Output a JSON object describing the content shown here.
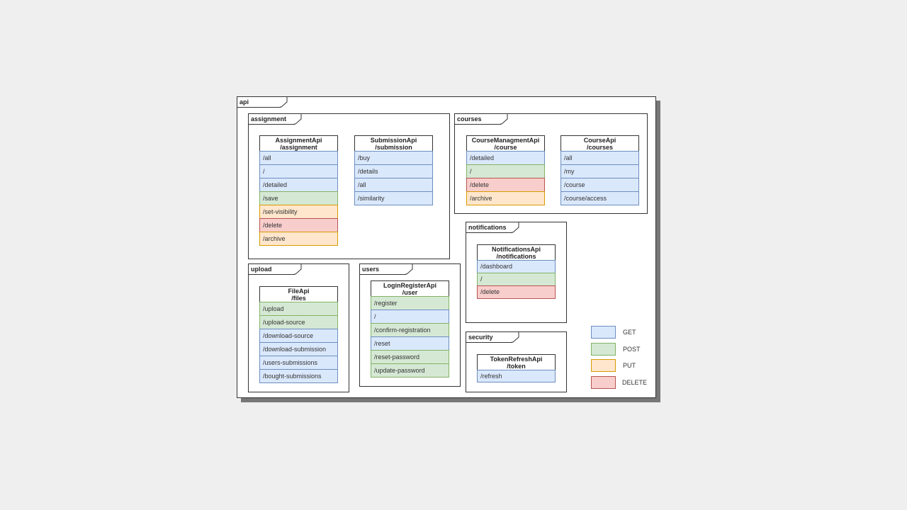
{
  "colors": {
    "GET": {
      "fill": "#dae8fc",
      "stroke": "#6c8ebf"
    },
    "POST": {
      "fill": "#d5e8d4",
      "stroke": "#82b366"
    },
    "PUT": {
      "fill": "#ffe6cc",
      "stroke": "#d79b00"
    },
    "DELETE": {
      "fill": "#f8cecc",
      "stroke": "#b85450"
    }
  },
  "root": {
    "label": "api"
  },
  "packages": {
    "assignment": {
      "label": "assignment",
      "classes": [
        {
          "name": "AssignmentApi",
          "path": "/assignment",
          "endpoints": [
            {
              "path": "/all",
              "method": "GET"
            },
            {
              "path": "/",
              "method": "GET"
            },
            {
              "path": "/detailed",
              "method": "GET"
            },
            {
              "path": "/save",
              "method": "POST"
            },
            {
              "path": "/set-visibility",
              "method": "PUT"
            },
            {
              "path": "/delete",
              "method": "DELETE"
            },
            {
              "path": "/archive",
              "method": "PUT"
            }
          ]
        },
        {
          "name": "SubmissionApi",
          "path": "/submission",
          "endpoints": [
            {
              "path": "/buy",
              "method": "GET"
            },
            {
              "path": "/details",
              "method": "GET"
            },
            {
              "path": "/all",
              "method": "GET"
            },
            {
              "path": "/similarity",
              "method": "GET"
            }
          ]
        }
      ]
    },
    "courses": {
      "label": "courses",
      "classes": [
        {
          "name": "CourseManagmentApi",
          "path": "/course",
          "endpoints": [
            {
              "path": "/detailed",
              "method": "GET"
            },
            {
              "path": "/",
              "method": "POST"
            },
            {
              "path": "/delete",
              "method": "DELETE"
            },
            {
              "path": "/archive",
              "method": "PUT"
            }
          ]
        },
        {
          "name": "CourseApi",
          "path": "/courses",
          "endpoints": [
            {
              "path": "/all",
              "method": "GET"
            },
            {
              "path": "/my",
              "method": "GET"
            },
            {
              "path": "/course",
              "method": "GET"
            },
            {
              "path": "/course/access",
              "method": "GET"
            }
          ]
        }
      ]
    },
    "notifications": {
      "label": "notifications",
      "classes": [
        {
          "name": "NotificationsApi",
          "path": "/notifications",
          "endpoints": [
            {
              "path": "/dashboard",
              "method": "GET"
            },
            {
              "path": "/",
              "method": "POST"
            },
            {
              "path": "/delete",
              "method": "DELETE"
            }
          ]
        }
      ]
    },
    "security": {
      "label": "security",
      "classes": [
        {
          "name": "TokenRefreshApi",
          "path": "/token",
          "endpoints": [
            {
              "path": "/refresh",
              "method": "GET"
            }
          ]
        }
      ]
    },
    "upload": {
      "label": "upload",
      "classes": [
        {
          "name": "FileApi",
          "path": "/files",
          "endpoints": [
            {
              "path": "/upload",
              "method": "POST"
            },
            {
              "path": "/upload-source",
              "method": "POST"
            },
            {
              "path": "/download-source",
              "method": "GET"
            },
            {
              "path": "/download-submission",
              "method": "GET"
            },
            {
              "path": "/users-submissions",
              "method": "GET"
            },
            {
              "path": "/bought-submissions",
              "method": "GET"
            }
          ]
        }
      ]
    },
    "users": {
      "label": "users",
      "classes": [
        {
          "name": "LoginRegisterApi",
          "path": "/user",
          "endpoints": [
            {
              "path": "/register",
              "method": "POST"
            },
            {
              "path": "/",
              "method": "GET"
            },
            {
              "path": "/confirm-registration",
              "method": "POST"
            },
            {
              "path": "/reset",
              "method": "GET"
            },
            {
              "path": "/reset-password",
              "method": "POST"
            },
            {
              "path": "/update-password",
              "method": "POST"
            }
          ]
        }
      ]
    }
  },
  "legend": [
    {
      "label": "GET",
      "method": "GET"
    },
    {
      "label": "POST",
      "method": "POST"
    },
    {
      "label": "PUT",
      "method": "PUT"
    },
    {
      "label": "DELETE",
      "method": "DELETE"
    }
  ]
}
